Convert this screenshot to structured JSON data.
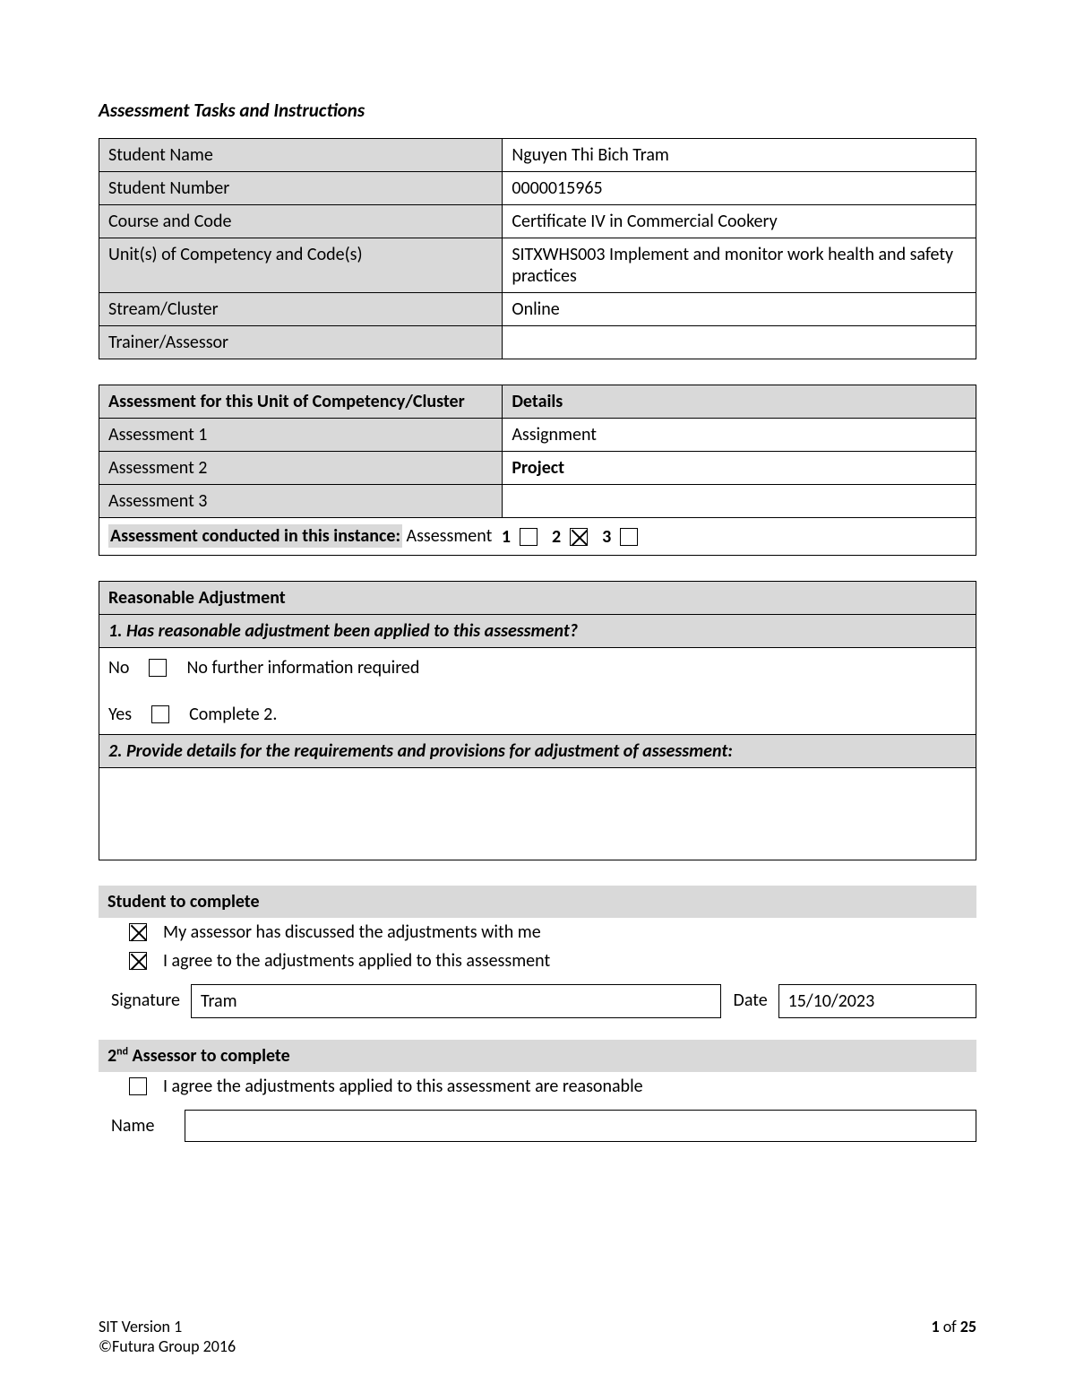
{
  "colors": {
    "gray_fill": "#d9d9d9",
    "border": "#000000",
    "background": "#ffffff",
    "text": "#000000"
  },
  "typography": {
    "title_fontsize": 21,
    "body_fontsize": 20,
    "footer_fontsize": 18
  },
  "title": "Assessment Tasks and Instructions",
  "info_table": {
    "rows": [
      {
        "label": "Student Name",
        "value": "Nguyen Thi Bich Tram"
      },
      {
        "label": "Student Number",
        "value": "0000015965"
      },
      {
        "label": "Course and Code",
        "value": "Certificate IV in Commercial Cookery"
      },
      {
        "label": "Unit(s) of Competency and Code(s)",
        "value": "SITXWHS003 Implement and monitor work health and safety practices"
      },
      {
        "label": "Stream/Cluster",
        "value": "Online"
      },
      {
        "label": "Trainer/Assessor",
        "value": ""
      }
    ]
  },
  "assessment_table": {
    "header_left": "Assessment for this Unit of Competency/Cluster",
    "header_right": "Details",
    "rows": [
      {
        "label": "Assessment 1",
        "value": "Assignment",
        "value_bold": false
      },
      {
        "label": "Assessment 2",
        "value": "Project",
        "value_bold": true
      },
      {
        "label": "Assessment 3",
        "value": "",
        "value_bold": false
      }
    ],
    "instance": {
      "prefix_highlight": "Assessment conducted in this instance:",
      "label_tail": " Assessment",
      "options": [
        {
          "num": "1",
          "checked": false
        },
        {
          "num": "2",
          "checked": true
        },
        {
          "num": "3",
          "checked": false
        }
      ]
    }
  },
  "adjustment": {
    "header": "Reasonable Adjustment",
    "q1": "1.   Has reasonable adjustment been applied to this assessment?",
    "no_label": "No",
    "no_text": "No further information required",
    "yes_label": "Yes",
    "yes_text": "Complete 2.",
    "no_checked": false,
    "yes_checked": false,
    "q2": "2.   Provide details for the requirements and provisions for adjustment of assessment:",
    "details": ""
  },
  "student_complete": {
    "header": "Student to complete",
    "line1": {
      "checked": true,
      "text": "My assessor has discussed the adjustments with me"
    },
    "line2": {
      "checked": true,
      "text": "I agree to the adjustments applied to this assessment"
    },
    "signature_label": "Signature",
    "signature_value": "Tram",
    "date_label": "Date",
    "date_value": "15/10/2023"
  },
  "assessor_complete": {
    "header_prefix": "2",
    "header_sup": "nd",
    "header_rest": " Assessor to complete",
    "line1": {
      "checked": false,
      "text": "I agree the adjustments applied to this assessment are reasonable"
    },
    "name_label": "Name",
    "name_value": ""
  },
  "footer": {
    "left1": "SIT Version 1",
    "left2": "©Futura Group 2016",
    "right_prefix": "1",
    "right_mid": " of ",
    "right_suffix": "25"
  }
}
